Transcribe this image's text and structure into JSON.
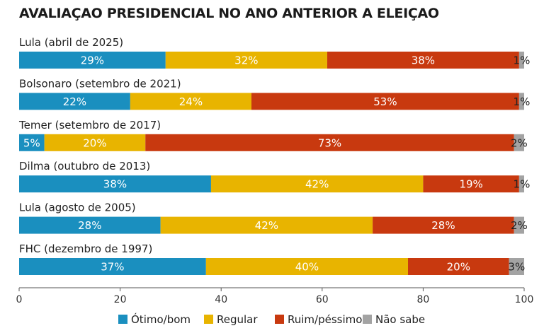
{
  "chart_data": {
    "type": "bar",
    "orientation": "horizontal",
    "stacked": true,
    "title": "AVALIAÇAO PRESIDENCIAL NO ANO ANTERIOR A ELEIÇAO",
    "categories": [
      "Lula (abril de 2025)",
      "Bolsonaro (setembro de 2021)",
      "Temer (setembro de 2017)",
      "Dilma (outubro de 2013)",
      "Lula (agosto de 2005)",
      "FHC (dezembro de 1997)"
    ],
    "series": [
      {
        "name": "Ótimo/bom",
        "color": "#1a8fbf",
        "values": [
          29,
          22,
          5,
          38,
          28,
          37
        ],
        "labels": [
          "29%",
          "22%",
          "5%",
          "38%",
          "28%",
          "37%"
        ]
      },
      {
        "name": "Regular",
        "color": "#e8b400",
        "values": [
          32,
          24,
          20,
          42,
          42,
          40
        ],
        "labels": [
          "32%",
          "24%",
          "20%",
          "42%",
          "42%",
          "40%"
        ]
      },
      {
        "name": "Ruim/péssimo",
        "color": "#c8390f",
        "values": [
          38,
          53,
          73,
          19,
          28,
          20
        ],
        "labels": [
          "38%",
          "53%",
          "73%",
          "19%",
          "28%",
          "20%"
        ]
      },
      {
        "name": "Não sabe",
        "color": "#a3a3a3",
        "values": [
          1,
          1,
          2,
          1,
          2,
          3
        ],
        "labels": [
          "1%",
          "1%",
          "2%",
          "1%",
          "2%",
          "3%"
        ]
      }
    ],
    "xlim": [
      0,
      100
    ],
    "xticks": [
      0,
      20,
      40,
      60,
      80,
      100
    ],
    "xtick_labels": [
      "0",
      "20",
      "40",
      "60",
      "80",
      "100"
    ],
    "grid": false,
    "legend_position": "bottom"
  }
}
